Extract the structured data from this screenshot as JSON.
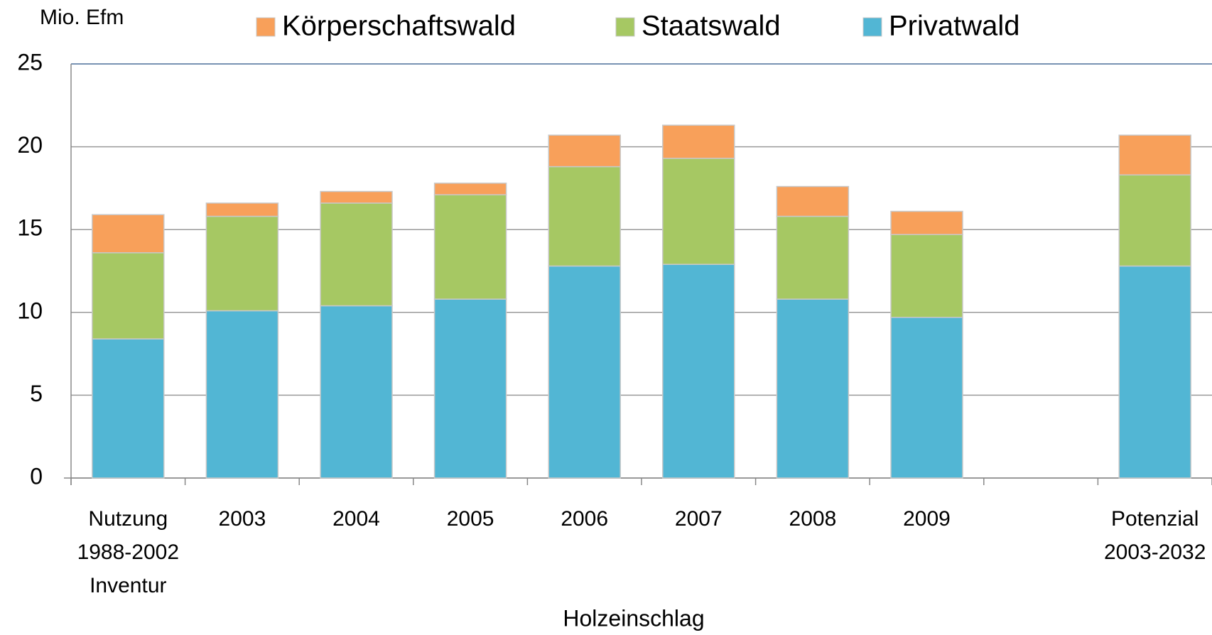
{
  "chart_data": {
    "type": "stacked_bar",
    "y_axis_label": "Mio. Efm",
    "x_axis_label": "Holzeinschlag",
    "categories": [
      "Nutzung\n1988-2002\nInventur",
      "2003",
      "2004",
      "2005",
      "2006",
      "2007",
      "2008",
      "2009",
      null,
      "Potenzial\n2003-2032"
    ],
    "series": [
      {
        "name": "Privatwald",
        "color": "#52b6d4",
        "values": [
          8.4,
          10.1,
          10.4,
          10.8,
          12.8,
          12.9,
          10.8,
          9.7,
          null,
          12.8
        ]
      },
      {
        "name": "Staatswald",
        "color": "#a6c863",
        "values": [
          5.2,
          5.7,
          6.2,
          6.3,
          6.0,
          6.4,
          5.0,
          5.0,
          null,
          5.5
        ]
      },
      {
        "name": "Körperschaftswald",
        "color": "#f8a05a",
        "values": [
          2.3,
          0.8,
          0.7,
          0.7,
          1.9,
          2.0,
          1.8,
          1.4,
          null,
          2.4
        ]
      }
    ],
    "ylim": [
      0,
      25
    ],
    "yticks": [
      0,
      5,
      10,
      15,
      20,
      25
    ],
    "grid": true,
    "legend": "top"
  }
}
